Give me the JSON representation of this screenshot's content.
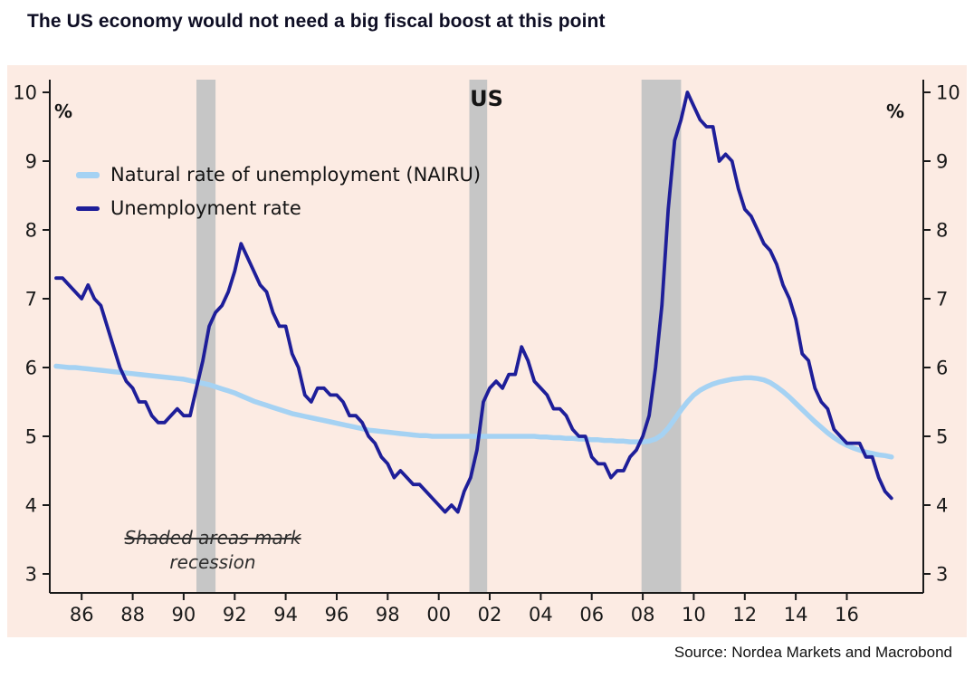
{
  "title": "The US economy would not need a big fiscal boost at this point",
  "source": "Source: Nordea Markets and Macrobond",
  "chart_data": {
    "type": "line",
    "title": "US",
    "y_axis_label_left": "%",
    "y_axis_label_right": "%",
    "ylim": [
      3,
      10
    ],
    "y_ticks": [
      3,
      4,
      5,
      6,
      7,
      8,
      9,
      10
    ],
    "xlim": [
      1984.75,
      2019.0
    ],
    "x_ticks": [
      1986,
      1988,
      1990,
      1992,
      1994,
      1996,
      1998,
      2000,
      2002,
      2004,
      2006,
      2008,
      2010,
      2012,
      2014,
      2016
    ],
    "x_tick_labels": [
      "86",
      "88",
      "90",
      "92",
      "94",
      "96",
      "98",
      "00",
      "02",
      "04",
      "06",
      "08",
      "10",
      "12",
      "14",
      "16"
    ],
    "x_start": 1985.0,
    "x_step": 0.25,
    "grid": false,
    "legend_position": "top-left",
    "annotation": {
      "line1": "Shaded areas mark",
      "line2": "recession"
    },
    "recession_bands": [
      [
        1990.5,
        1991.25
      ],
      [
        2001.2,
        2001.9
      ],
      [
        2007.95,
        2009.5
      ]
    ],
    "colors": {
      "chart_bg": "#fcebe3",
      "band": "#c6c6c6",
      "axis": "#1a1a1a"
    },
    "series": [
      {
        "name": "Natural rate of unemployment (NAIRU)",
        "color": "#a5d2f3",
        "width": 5.5,
        "values": [
          6.02,
          6.01,
          6.0,
          6.0,
          5.99,
          5.98,
          5.97,
          5.96,
          5.95,
          5.94,
          5.93,
          5.92,
          5.91,
          5.9,
          5.89,
          5.88,
          5.87,
          5.86,
          5.85,
          5.84,
          5.83,
          5.81,
          5.79,
          5.77,
          5.75,
          5.72,
          5.69,
          5.66,
          5.63,
          5.59,
          5.55,
          5.51,
          5.48,
          5.45,
          5.42,
          5.39,
          5.36,
          5.33,
          5.31,
          5.29,
          5.27,
          5.25,
          5.23,
          5.21,
          5.19,
          5.17,
          5.15,
          5.13,
          5.11,
          5.09,
          5.08,
          5.07,
          5.06,
          5.05,
          5.04,
          5.03,
          5.02,
          5.01,
          5.01,
          5.0,
          5.0,
          5.0,
          5.0,
          5.0,
          5.0,
          5.0,
          5.0,
          5.0,
          5.0,
          5.0,
          5.0,
          5.0,
          5.0,
          5.0,
          5.0,
          5.0,
          4.99,
          4.99,
          4.98,
          4.98,
          4.97,
          4.97,
          4.96,
          4.96,
          4.95,
          4.95,
          4.94,
          4.94,
          4.93,
          4.93,
          4.92,
          4.92,
          4.92,
          4.93,
          4.96,
          5.02,
          5.12,
          5.25,
          5.38,
          5.5,
          5.6,
          5.67,
          5.72,
          5.76,
          5.79,
          5.81,
          5.83,
          5.84,
          5.85,
          5.85,
          5.84,
          5.82,
          5.78,
          5.72,
          5.65,
          5.57,
          5.48,
          5.39,
          5.3,
          5.21,
          5.13,
          5.05,
          4.98,
          4.92,
          4.87,
          4.83,
          4.8,
          4.77,
          4.75,
          4.73,
          4.72,
          4.7
        ]
      },
      {
        "name": "Unemployment rate",
        "color": "#1e1e99",
        "width": 3.8,
        "values": [
          7.3,
          7.3,
          7.2,
          7.1,
          7.0,
          7.2,
          7.0,
          6.9,
          6.6,
          6.3,
          6.0,
          5.8,
          5.7,
          5.5,
          5.5,
          5.3,
          5.2,
          5.2,
          5.3,
          5.4,
          5.3,
          5.3,
          5.7,
          6.1,
          6.6,
          6.8,
          6.9,
          7.1,
          7.4,
          7.8,
          7.6,
          7.4,
          7.2,
          7.1,
          6.8,
          6.6,
          6.6,
          6.2,
          6.0,
          5.6,
          5.5,
          5.7,
          5.7,
          5.6,
          5.6,
          5.5,
          5.3,
          5.3,
          5.2,
          5.0,
          4.9,
          4.7,
          4.6,
          4.4,
          4.5,
          4.4,
          4.3,
          4.3,
          4.2,
          4.1,
          4.0,
          3.9,
          4.0,
          3.9,
          4.2,
          4.4,
          4.8,
          5.5,
          5.7,
          5.8,
          5.7,
          5.9,
          5.9,
          6.3,
          6.1,
          5.8,
          5.7,
          5.6,
          5.4,
          5.4,
          5.3,
          5.1,
          5.0,
          5.0,
          4.7,
          4.6,
          4.6,
          4.4,
          4.5,
          4.5,
          4.7,
          4.8,
          5.0,
          5.3,
          6.0,
          6.9,
          8.3,
          9.3,
          9.6,
          10.0,
          9.8,
          9.6,
          9.5,
          9.5,
          9.0,
          9.1,
          9.0,
          8.6,
          8.3,
          8.2,
          8.0,
          7.8,
          7.7,
          7.5,
          7.2,
          7.0,
          6.7,
          6.2,
          6.1,
          5.7,
          5.5,
          5.4,
          5.1,
          5.0,
          4.9,
          4.9,
          4.9,
          4.7,
          4.7,
          4.4,
          4.2,
          4.1
        ]
      }
    ]
  }
}
